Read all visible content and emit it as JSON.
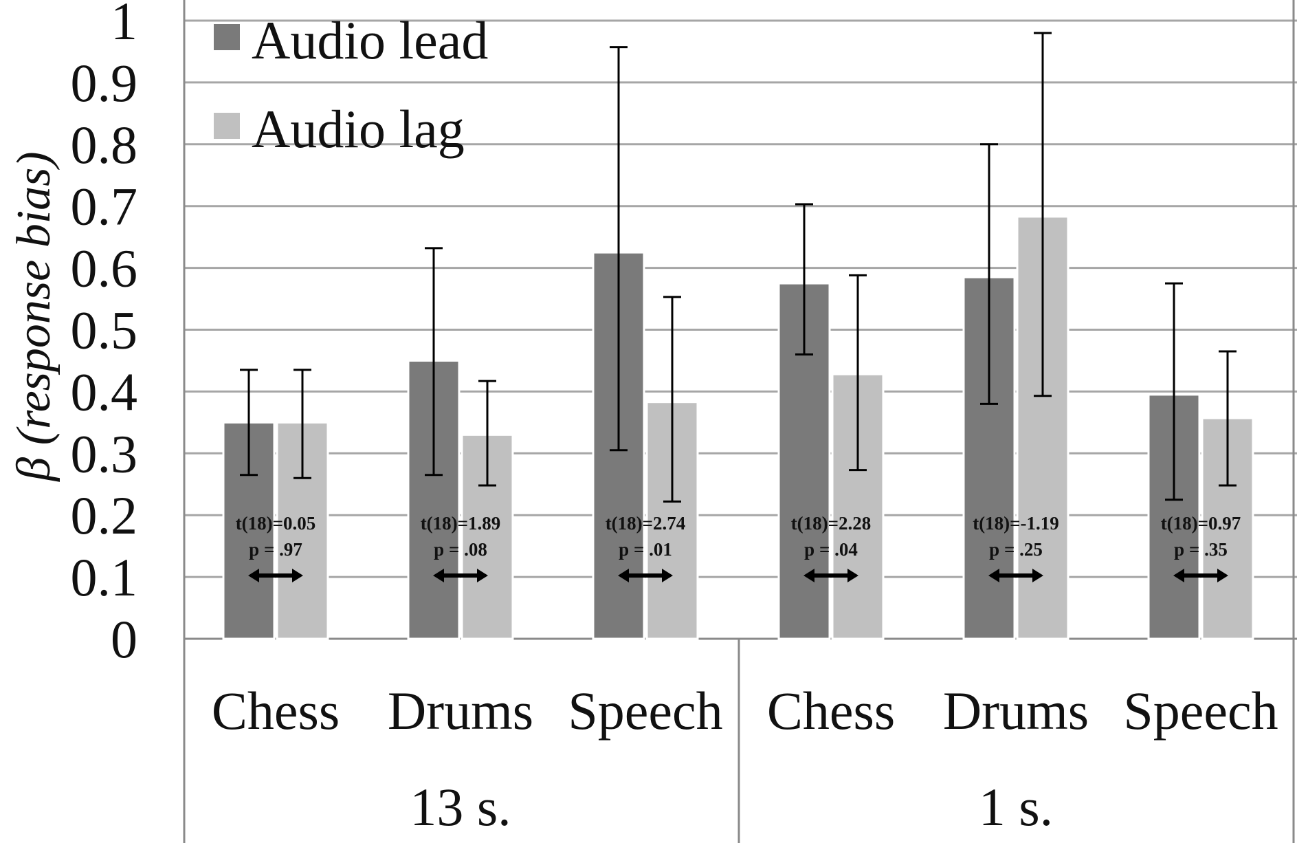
{
  "chart_data": {
    "type": "bar",
    "ylabel": "β (response bias)",
    "ylabel_symbol": "β",
    "ylabel_text": "(response bias)",
    "ylim": [
      0,
      1
    ],
    "yticks": [
      "0",
      "0.1",
      "0.2",
      "0.3",
      "0.4",
      "0.5",
      "0.6",
      "0.7",
      "0.8",
      "0.9",
      "1"
    ],
    "grid": true,
    "legend_position": "top-left",
    "groups": [
      {
        "label": "13 s.",
        "categories": [
          "Chess",
          "Drums",
          "Speech"
        ]
      },
      {
        "label": "1 s.",
        "categories": [
          "Chess",
          "Drums",
          "Speech"
        ]
      }
    ],
    "categories": [
      "Chess",
      "Drums",
      "Speech",
      "Chess",
      "Drums",
      "Speech"
    ],
    "series": [
      {
        "name": "Audio lead",
        "color": "#7a7a7a",
        "values": [
          0.35,
          0.45,
          0.625,
          0.575,
          0.585,
          0.395
        ],
        "error_low": [
          0.265,
          0.265,
          0.305,
          0.46,
          0.38,
          0.225
        ],
        "error_high": [
          0.435,
          0.632,
          0.957,
          0.703,
          0.8,
          0.575
        ]
      },
      {
        "name": "Audio lag",
        "color": "#c0c0c0",
        "values": [
          0.35,
          0.33,
          0.383,
          0.428,
          0.683,
          0.357
        ],
        "error_low": [
          0.26,
          0.248,
          0.222,
          0.273,
          0.393,
          0.248
        ],
        "error_high": [
          0.435,
          0.417,
          0.553,
          0.588,
          0.98,
          0.465
        ]
      }
    ],
    "annotations": [
      {
        "t": "t(18)=0.05",
        "p": "p = .97"
      },
      {
        "t": "t(18)=1.89",
        "p": "p = .08"
      },
      {
        "t": "t(18)=2.74",
        "p": "p = .01"
      },
      {
        "t": "t(18)=2.28",
        "p": "p = .04"
      },
      {
        "t": "t(18)=-1.19",
        "p": "p = .25"
      },
      {
        "t": "t(18)=0.97",
        "p": "p = .35"
      }
    ]
  }
}
